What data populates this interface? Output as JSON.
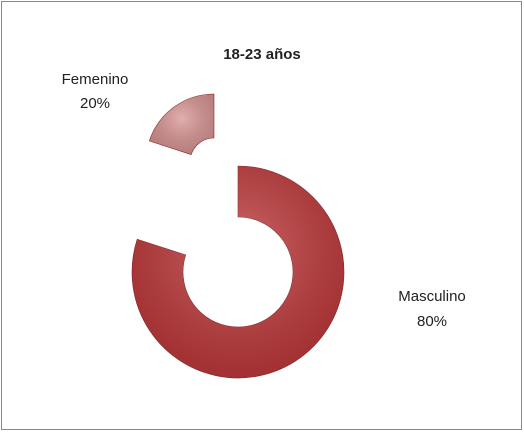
{
  "chart_data": {
    "type": "donut",
    "title": "18-23 años",
    "categories": [
      "Masculino",
      "Femenino"
    ],
    "values": [
      80,
      20
    ],
    "value_labels": [
      "80%",
      "20%"
    ],
    "colors": [
      "#c0393b",
      "#d99594"
    ]
  }
}
